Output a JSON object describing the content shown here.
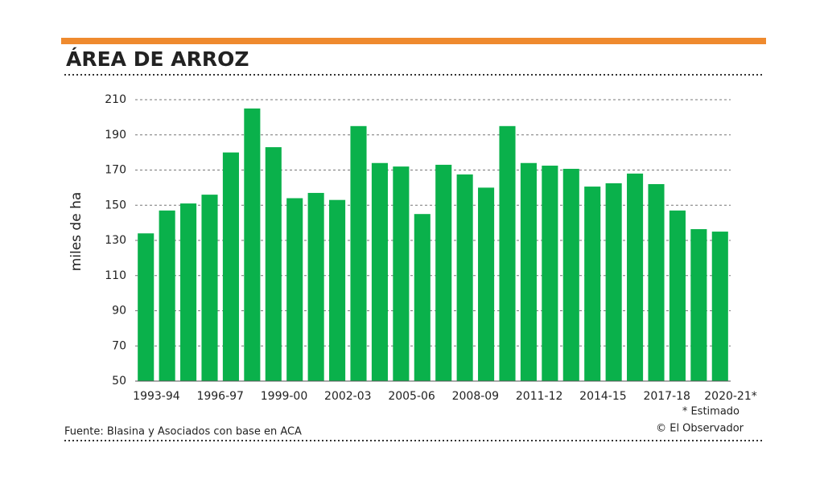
{
  "chart_data": {
    "type": "bar",
    "title": "ÁREA DE ARROZ",
    "y_label": "miles de ha",
    "note": "* Estimado",
    "source": "Fuente: Blasina y Asociados con base en ACA",
    "credit": "© El Observador",
    "categories": [
      "1993-94",
      null,
      null,
      "1996-97",
      null,
      null,
      "1999-00",
      null,
      null,
      "2002-03",
      null,
      null,
      "2005-06",
      null,
      null,
      "2008-09",
      null,
      null,
      "2011-12",
      null,
      null,
      "2014-15",
      null,
      null,
      "2017-18",
      null,
      null,
      "2020-21*"
    ],
    "values": [
      134,
      147,
      151,
      156,
      180,
      205,
      183,
      154,
      157,
      153,
      195,
      174,
      172,
      145,
      173,
      167.5,
      160,
      195,
      174,
      172.5,
      170.7,
      160.6,
      162.5,
      168,
      162,
      147,
      136.4,
      135
    ],
    "color": "#0ab14b",
    "ylim": [
      50,
      210
    ],
    "yticks": [
      50,
      70,
      90,
      110,
      130,
      150,
      170,
      190,
      210
    ],
    "grid": true
  }
}
